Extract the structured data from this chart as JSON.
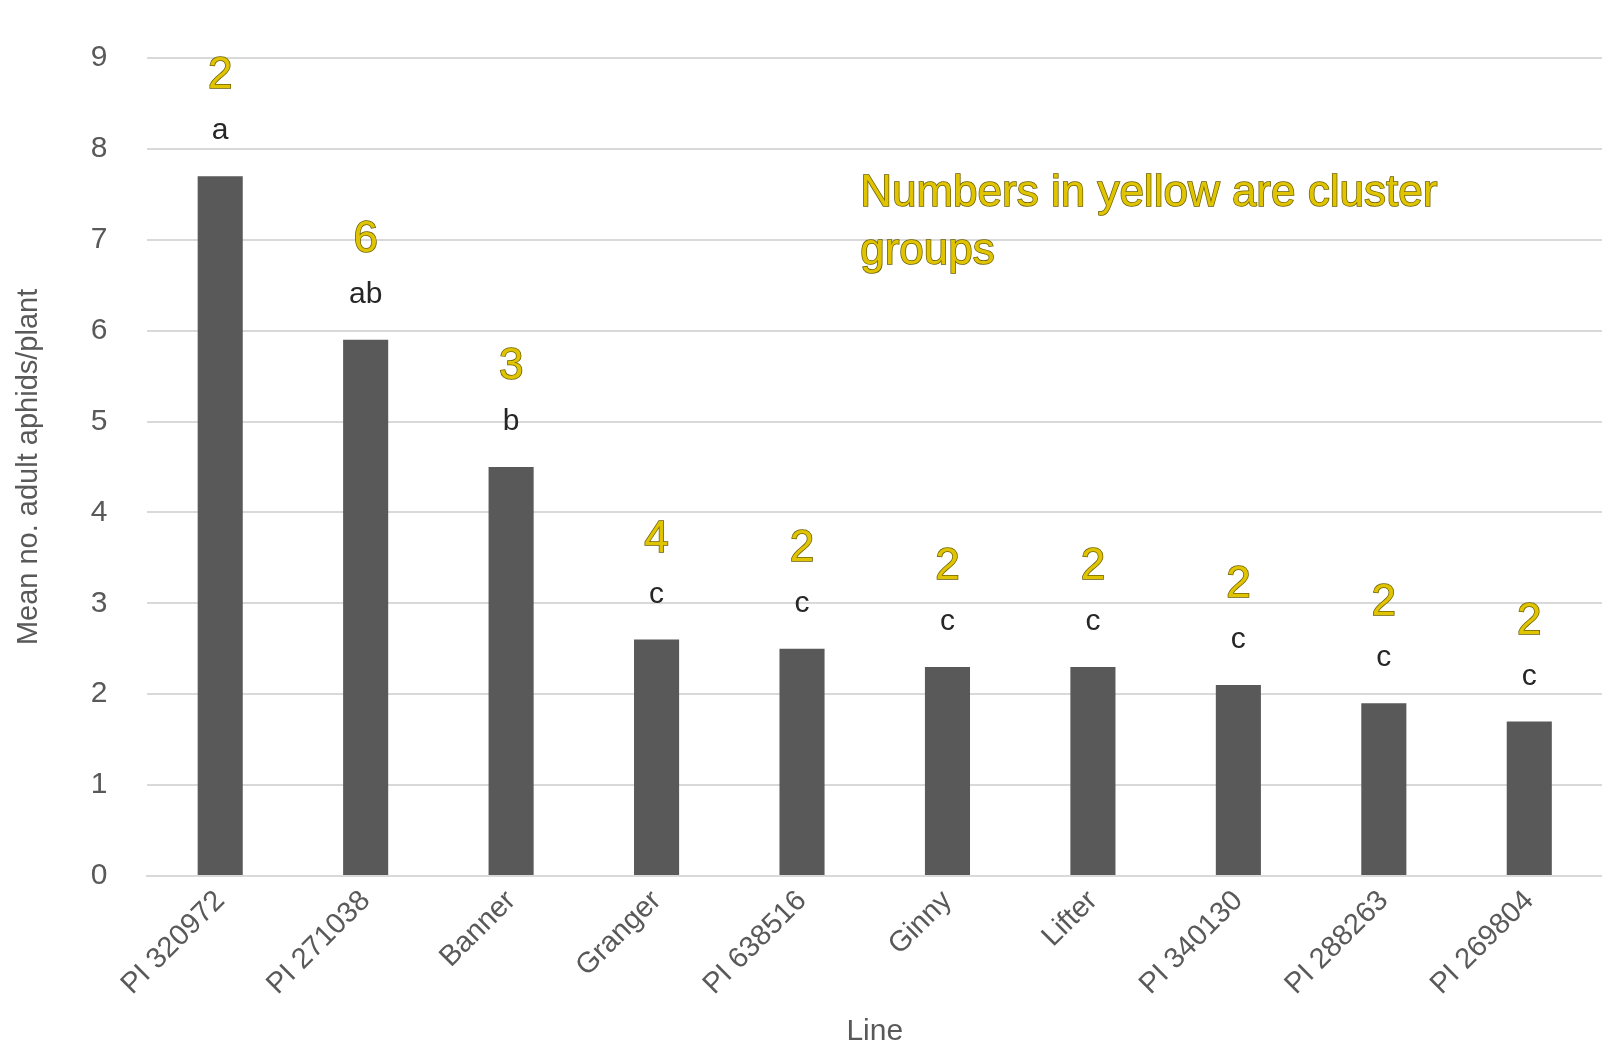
{
  "chart_data": {
    "type": "bar",
    "xlabel": "Line",
    "ylabel": "Mean no. adult aphids/plant",
    "categories": [
      "PI 320972",
      "PI 271038",
      "Banner",
      "Granger",
      "PI 638516",
      "Ginny",
      "Lifter",
      "PI 340130",
      "PI 288263",
      "PI 269804"
    ],
    "values": [
      7.7,
      5.9,
      4.5,
      2.6,
      2.5,
      2.3,
      2.3,
      2.1,
      1.9,
      1.7
    ],
    "value_labels": [
      "a",
      "ab",
      "b",
      "c",
      "c",
      "c",
      "c",
      "c",
      "c",
      "c"
    ],
    "color": "#595959",
    "ylim": [
      0,
      9
    ],
    "yticks": [
      0,
      1,
      2,
      3,
      4,
      5,
      6,
      7,
      8,
      9
    ],
    "grid": "y",
    "legend": false,
    "annotations": [
      "2",
      "6",
      "3",
      "4",
      "2",
      "2",
      "2",
      "2",
      "2",
      "2",
      "Numbers in yellow are cluster groups"
    ]
  }
}
